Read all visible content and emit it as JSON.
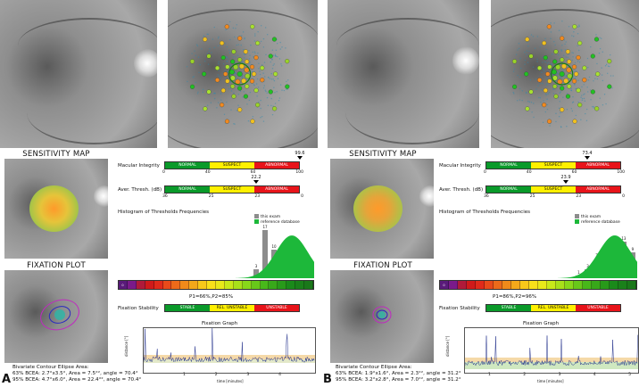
{
  "panels": [
    {
      "letter": "A",
      "sensitivity_title": "SENSITIVITY MAP",
      "fixation_title": "FIXATION PLOT",
      "macular_integrity": {
        "label": "Macular Integrity",
        "value": "99.6",
        "ticks": [
          "0",
          "40",
          "60",
          "100"
        ],
        "segments": [
          "NORMAL",
          "SUSPECT",
          "ABNORMAL"
        ],
        "marker_fraction": 0.996
      },
      "avg_threshold": {
        "label": "Aver. Thresh. (dB)",
        "value": "22.2",
        "ticks": [
          "36",
          "25",
          "23",
          "0"
        ],
        "segments": [
          "NORMAL",
          "SUSPECT",
          "ABNORMAL"
        ],
        "marker_fraction": 0.77
      },
      "histogram": {
        "title": "Histogram of Thresholds Frequencies",
        "legend_exam": "this exam",
        "legend_reference": "reference database",
        "bars": [
          {
            "bin": 15,
            "value": "3"
          },
          {
            "bin": 16,
            "value": "17"
          },
          {
            "bin": 17,
            "value": "10"
          },
          {
            "bin": 18,
            "value": "5"
          },
          {
            "bin": 19,
            "value": ""
          }
        ],
        "scale_start": "0"
      },
      "fixation_stability": {
        "label": "Fixation Stability",
        "p_values": "P1=66%,P2=85%",
        "segments": [
          "STABLE",
          "REL. UNSTABLE",
          "UNSTABLE"
        ]
      },
      "fixation_graph": {
        "title": "Fixation Graph",
        "ylabel": "distance [°]",
        "xlabel": "time [minutes]",
        "xticks": [
          "1",
          "2",
          "3",
          "4"
        ]
      },
      "bcea": {
        "title": "Bivariate Contour Ellipse Area:",
        "line63": "63% BCEA: 2.7°x3.5°, Area = 7.5°², angle = 70.4°",
        "line95": "95% BCEA: 4.7°x6.0°, Area = 22.4°², angle = 70.4°"
      }
    },
    {
      "letter": "B",
      "sensitivity_title": "SENSITIVITY MAP",
      "fixation_title": "FIXATION PLOT",
      "macular_integrity": {
        "label": "Macular Integrity",
        "value": "73.4",
        "ticks": [
          "0",
          "40",
          "60",
          "100"
        ],
        "segments": [
          "NORMAL",
          "SUSPECT",
          "ABNORMAL"
        ],
        "marker_fraction": 0.734
      },
      "avg_threshold": {
        "label": "Aver. Thresh. (dB)",
        "value": "23.9",
        "ticks": [
          "36",
          "25",
          "23",
          "0"
        ],
        "segments": [
          "NORMAL",
          "SUSPECT",
          "ABNORMAL"
        ],
        "marker_fraction": 0.72
      },
      "histogram": {
        "title": "Histogram of Thresholds Frequencies",
        "legend_exam": "this exam",
        "legend_reference": "reference database",
        "bars": [
          {
            "bin": 15,
            "value": "1"
          },
          {
            "bin": 16,
            "value": "3"
          },
          {
            "bin": 17,
            "value": "7"
          },
          {
            "bin": 18,
            "value": "4"
          },
          {
            "bin": 19,
            "value": "2"
          },
          {
            "bin": 20,
            "value": "13"
          },
          {
            "bin": 21,
            "value": "9"
          }
        ],
        "scale_start": "0"
      },
      "fixation_stability": {
        "label": "Fixation Stability",
        "p_values": "P1=86%,P2=96%",
        "segments": [
          "STABLE",
          "REL. UNSTABLE",
          "UNSTABLE"
        ]
      },
      "fixation_graph": {
        "title": "Fixation Graph",
        "ylabel": "distance [°]",
        "xlabel": "time [minutes]",
        "xticks": [
          "1",
          "2",
          "3",
          "4",
          "5"
        ]
      },
      "bcea": {
        "title": "Bivariate Contour Ellipse Area:",
        "line63": "63% BCEA: 1.9°x1.6°, Area = 2.3°², angle = 31.2°",
        "line95": "95% BCEA: 3.2°x2.8°, Area = 7.0°², angle = 31.2°"
      }
    }
  ],
  "colors": {
    "normal": "#0a9a2a",
    "suspect": "#fff000",
    "abnormal": "#e8141a",
    "histogram_exam": "#8c8c8c",
    "histogram_reference": "#1db83a",
    "fixation_trace": "#1f2d8a"
  }
}
